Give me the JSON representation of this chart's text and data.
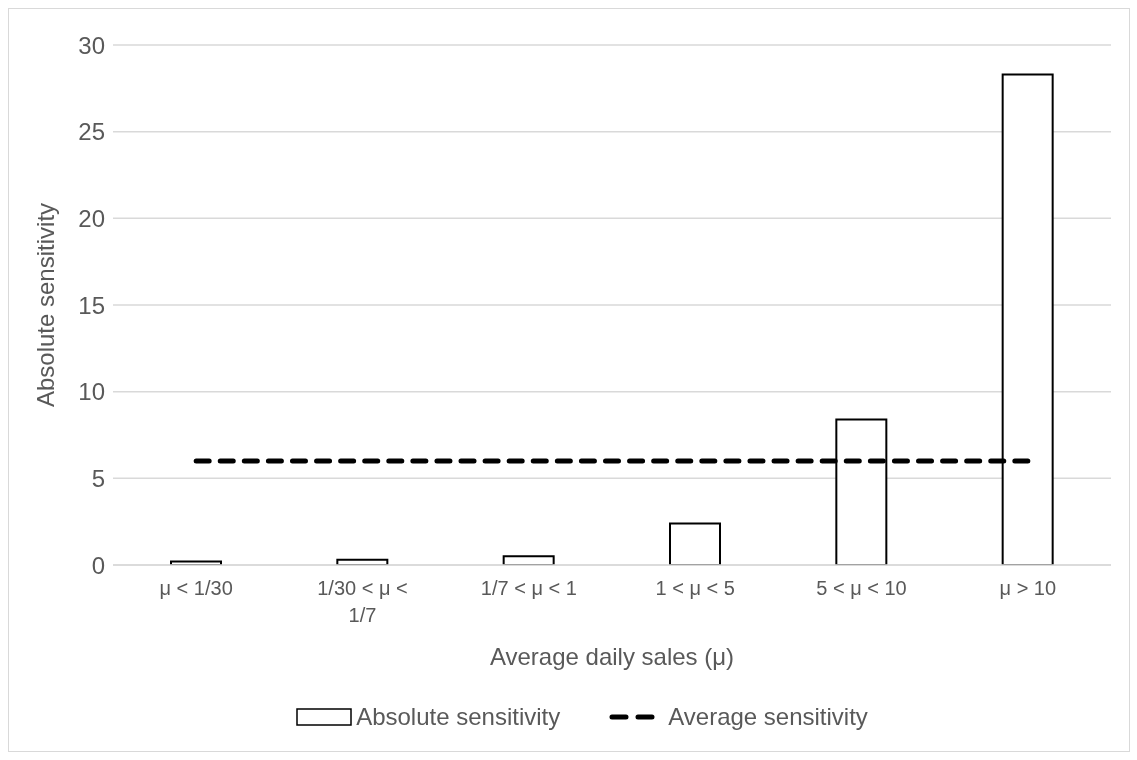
{
  "chart_data": {
    "type": "bar",
    "xlabel": "Average daily sales (μ)",
    "ylabel": "Absolute sensitivity",
    "categories": [
      "μ < 1/30",
      "1/30 < μ < 1/7",
      "1/7 < μ < 1",
      "1 < μ < 5",
      "5 < μ < 10",
      "μ > 10"
    ],
    "series": [
      {
        "name": "Absolute sensitivity",
        "color": "#ffffff",
        "values": [
          0.2,
          0.3,
          0.5,
          2.4,
          8.4,
          28.3
        ]
      },
      {
        "name": "Average sensitivity",
        "type": "line",
        "color": "#000000",
        "line_style": "dashed",
        "marker": "none",
        "values": [
          6,
          6,
          6,
          6,
          6,
          6
        ]
      }
    ],
    "ylim": [
      0,
      30
    ],
    "yticks": [
      0,
      5,
      10,
      15,
      20,
      25,
      30
    ],
    "grid": "y",
    "legend": "bottom"
  }
}
